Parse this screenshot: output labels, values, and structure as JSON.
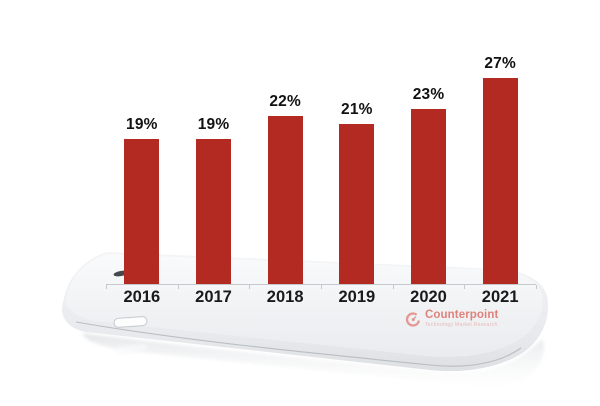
{
  "chart_data": {
    "type": "bar",
    "categories": [
      "2016",
      "2017",
      "2018",
      "2019",
      "2020",
      "2021"
    ],
    "values": [
      19,
      19,
      22,
      21,
      23,
      27
    ],
    "value_labels": [
      "19%",
      "19%",
      "22%",
      "21%",
      "23%",
      "27%"
    ],
    "value_suffix": "%",
    "xlabel": "",
    "ylabel": "",
    "grid": "off",
    "legend": "none",
    "bar_color": "#B32A22",
    "label_color": "#121212",
    "axis_color": "#c6c9cb"
  },
  "branding": {
    "logo_text": "Counterpoint",
    "logo_subtext": "Technology Market Research",
    "logo_color": "#dd6f68"
  }
}
